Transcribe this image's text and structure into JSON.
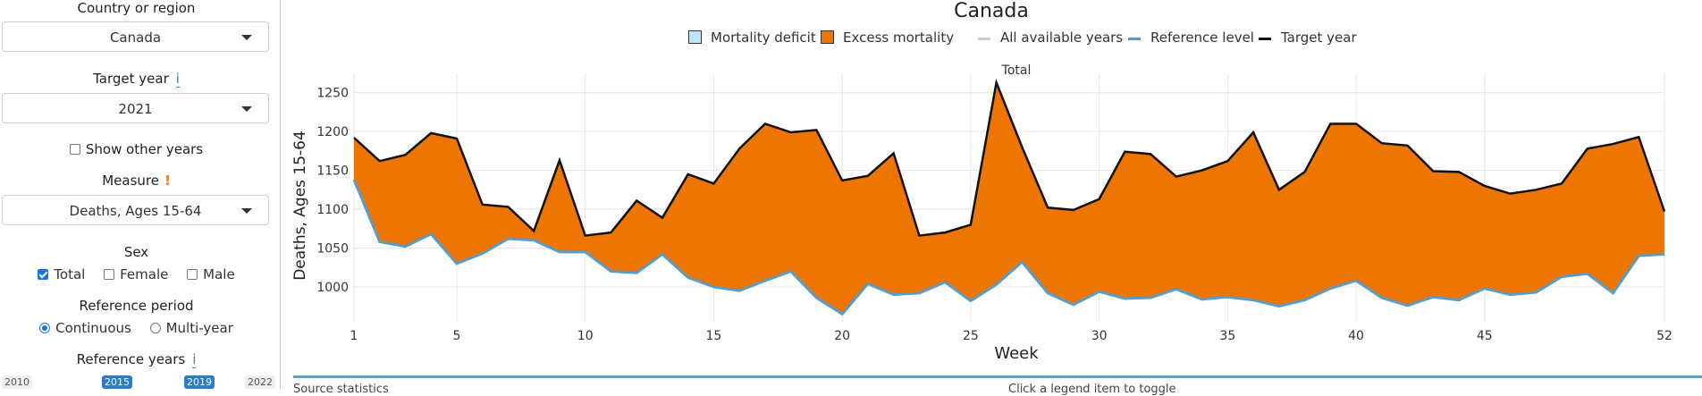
{
  "sidebar": {
    "country_label": "Country or region",
    "country_value": "Canada",
    "target_year_label": "Target year",
    "target_year_info": "i",
    "target_year_value": "2021",
    "show_other_years": "Show other years",
    "measure_label": "Measure",
    "measure_warn": "!",
    "measure_value": "Deaths, Ages 15-64",
    "sex_label": "Sex",
    "sex_options": [
      "Total",
      "Female",
      "Male"
    ],
    "reference_period_label": "Reference period",
    "reference_period_options": [
      "Continuous",
      "Multi-year"
    ],
    "reference_years_label": "Reference years",
    "reference_years_info": "i",
    "year_ticks": [
      "2010",
      "2015",
      "2019",
      "2022"
    ]
  },
  "chart_title": "Canada",
  "legend": {
    "deficit": "Mortality deficit",
    "excess": "Excess mortality",
    "all_years": "All available years",
    "reference": "Reference level",
    "target": "Target year"
  },
  "colors": {
    "excess": "#ee7600",
    "deficit": "#bde4f7",
    "reference": "#5b9bc4",
    "target": "#111111",
    "all_years": "#cccccc"
  },
  "bottom": {
    "left_text": "Source statistics",
    "right_text": "Click a legend item to toggle"
  },
  "chart_data": {
    "type": "area",
    "subtitle": "Total",
    "xlabel": "Week",
    "ylabel": "Deaths, Ages 15-64",
    "xlim": [
      1,
      52
    ],
    "ylim": [
      955,
      1275
    ],
    "xticks": [
      1,
      5,
      10,
      15,
      20,
      25,
      30,
      35,
      40,
      45,
      52
    ],
    "yticks": [
      1000,
      1050,
      1100,
      1150,
      1200,
      1250
    ],
    "x": [
      1,
      2,
      3,
      4,
      5,
      6,
      7,
      8,
      9,
      10,
      11,
      12,
      13,
      14,
      15,
      16,
      17,
      18,
      19,
      20,
      21,
      22,
      23,
      24,
      25,
      26,
      27,
      28,
      29,
      30,
      31,
      32,
      33,
      34,
      35,
      36,
      37,
      38,
      39,
      40,
      41,
      42,
      43,
      44,
      45,
      46,
      47,
      48,
      49,
      50,
      51,
      52
    ],
    "series": [
      {
        "name": "Target year",
        "values": [
          1192,
          1162,
          1170,
          1198,
          1191,
          1106,
          1103,
          1072,
          1163,
          1066,
          1070,
          1111,
          1089,
          1145,
          1133,
          1178,
          1210,
          1199,
          1202,
          1137,
          1143,
          1172,
          1066,
          1070,
          1080,
          1263,
          1180,
          1102,
          1099,
          1113,
          1174,
          1171,
          1142,
          1150,
          1162,
          1199,
          1125,
          1148,
          1210,
          1210,
          1185,
          1182,
          1149,
          1148,
          1130,
          1120,
          1125,
          1133,
          1178,
          1184,
          1193,
          1097
        ]
      },
      {
        "name": "Reference level",
        "values": [
          1138,
          1058,
          1052,
          1068,
          1030,
          1043,
          1062,
          1060,
          1045,
          1045,
          1020,
          1018,
          1042,
          1012,
          1000,
          995,
          1008,
          1020,
          986,
          965,
          1004,
          990,
          992,
          1006,
          982,
          1003,
          1032,
          992,
          977,
          994,
          985,
          986,
          997,
          984,
          987,
          983,
          975,
          983,
          998,
          1008,
          986,
          976,
          987,
          983,
          998,
          990,
          993,
          1013,
          1017,
          992,
          1040,
          1042
        ]
      }
    ]
  }
}
